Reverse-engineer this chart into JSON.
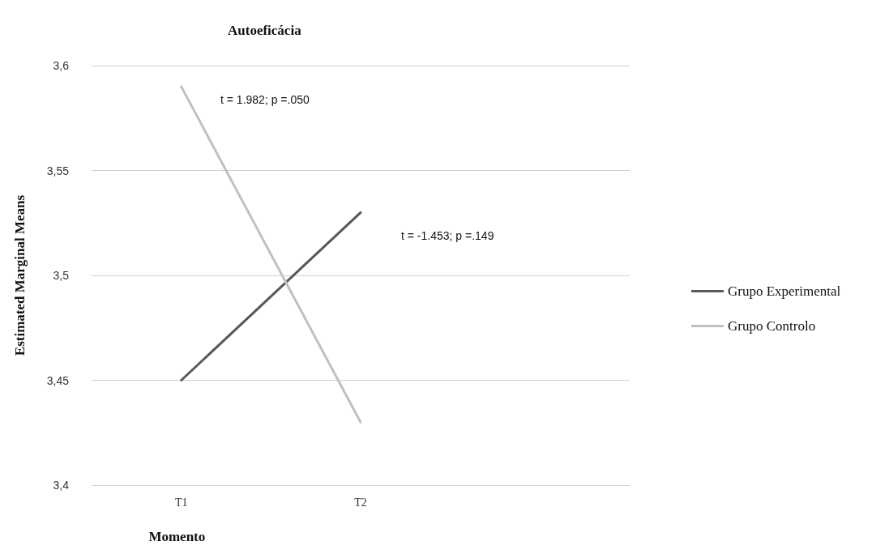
{
  "chart_data": {
    "type": "line",
    "title": "Autoeficácia",
    "xlabel": "Momento",
    "ylabel": "Estimated Marginal Means",
    "categories": [
      "T1",
      "T2"
    ],
    "series": [
      {
        "name": "Grupo Experimental",
        "color": "#595959",
        "values": [
          3.45,
          3.53
        ]
      },
      {
        "name": "Grupo Controlo",
        "color": "#c0c0c0",
        "values": [
          3.59,
          3.43
        ]
      }
    ],
    "ylim": [
      3.4,
      3.6
    ],
    "yticks": [
      {
        "value": 3.4,
        "label": "3,4"
      },
      {
        "value": 3.45,
        "label": "3,45"
      },
      {
        "value": 3.5,
        "label": "3,5"
      },
      {
        "value": 3.55,
        "label": "3,55"
      },
      {
        "value": 3.6,
        "label": "3,6"
      }
    ],
    "annotations": [
      "t = 1.982; p =.050",
      "t = -1.453; p =.149"
    ],
    "grid": "y",
    "legend": "right",
    "marker": "none",
    "line_style": "solid"
  }
}
